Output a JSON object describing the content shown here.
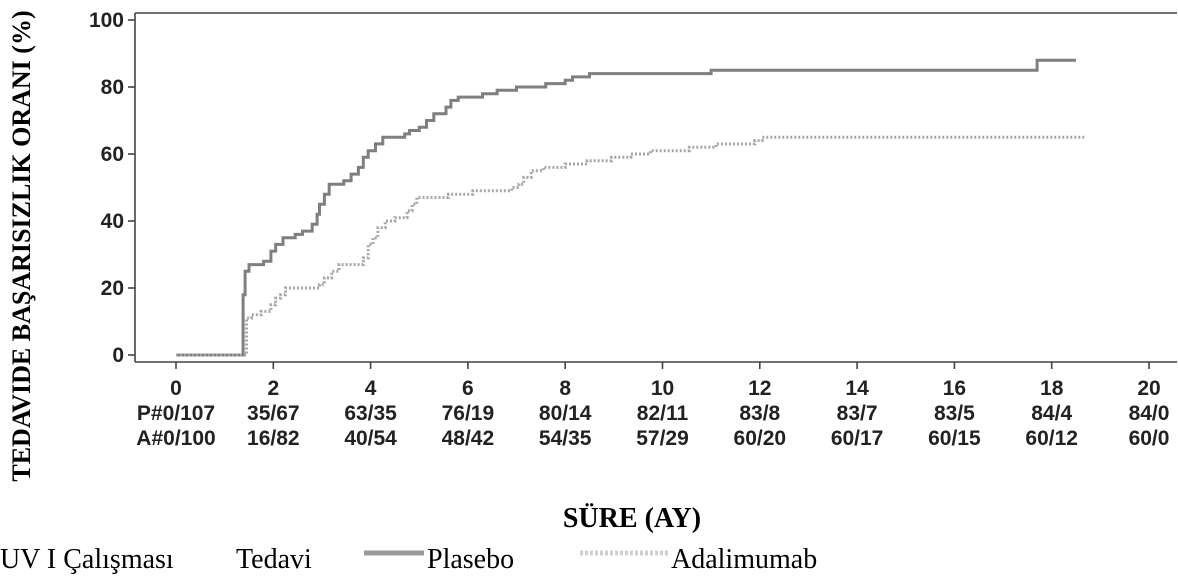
{
  "chart_data": {
    "type": "line",
    "ylabel": "TEDAVIDE BAŞARISIZLIK ORANI (%)",
    "xlabel": "SÜRE (AY)",
    "xlim": [
      0,
      20
    ],
    "ylim": [
      0,
      100
    ],
    "grid": false,
    "x_ticks": [
      0,
      2,
      4,
      6,
      8,
      10,
      12,
      14,
      16,
      18,
      20
    ],
    "y_ticks": [
      0,
      20,
      40,
      60,
      80,
      100
    ],
    "series": [
      {
        "name": "Plasebo",
        "color": "#7f7f7f",
        "style": "solid",
        "steps": [
          [
            0,
            0
          ],
          [
            1.38,
            18
          ],
          [
            1.42,
            25
          ],
          [
            1.5,
            27
          ],
          [
            1.8,
            28
          ],
          [
            1.95,
            31
          ],
          [
            2.05,
            33
          ],
          [
            2.2,
            35
          ],
          [
            2.45,
            36
          ],
          [
            2.6,
            37
          ],
          [
            2.8,
            39
          ],
          [
            2.9,
            42
          ],
          [
            2.95,
            45
          ],
          [
            3.05,
            48
          ],
          [
            3.15,
            51
          ],
          [
            3.45,
            52
          ],
          [
            3.6,
            54
          ],
          [
            3.75,
            56
          ],
          [
            3.85,
            59
          ],
          [
            3.95,
            61
          ],
          [
            4.1,
            63
          ],
          [
            4.25,
            65
          ],
          [
            4.7,
            66
          ],
          [
            4.8,
            67
          ],
          [
            5.0,
            68
          ],
          [
            5.15,
            70
          ],
          [
            5.3,
            72
          ],
          [
            5.55,
            74
          ],
          [
            5.65,
            76
          ],
          [
            5.8,
            77
          ],
          [
            6.3,
            78
          ],
          [
            6.6,
            79
          ],
          [
            7.0,
            80
          ],
          [
            7.6,
            81
          ],
          [
            8.0,
            82
          ],
          [
            8.15,
            83
          ],
          [
            8.5,
            84
          ],
          [
            11.0,
            85
          ],
          [
            17.7,
            88
          ],
          [
            18.5,
            88
          ]
        ]
      },
      {
        "name": "Adalimumab",
        "color": "#a6a6a6",
        "style": "dotted",
        "steps": [
          [
            0,
            0
          ],
          [
            1.45,
            11
          ],
          [
            1.55,
            12
          ],
          [
            1.75,
            13
          ],
          [
            1.95,
            15
          ],
          [
            2.05,
            17
          ],
          [
            2.15,
            18
          ],
          [
            2.25,
            20
          ],
          [
            2.95,
            21
          ],
          [
            3.05,
            23
          ],
          [
            3.2,
            25
          ],
          [
            3.35,
            27
          ],
          [
            3.85,
            29
          ],
          [
            3.95,
            33
          ],
          [
            4.05,
            35
          ],
          [
            4.15,
            38
          ],
          [
            4.3,
            40
          ],
          [
            4.5,
            41
          ],
          [
            4.75,
            43
          ],
          [
            4.85,
            45
          ],
          [
            4.95,
            47
          ],
          [
            5.6,
            48
          ],
          [
            6.1,
            49
          ],
          [
            6.9,
            50
          ],
          [
            7.05,
            51
          ],
          [
            7.15,
            53
          ],
          [
            7.3,
            55
          ],
          [
            7.55,
            56
          ],
          [
            8.0,
            57
          ],
          [
            8.45,
            58
          ],
          [
            8.95,
            59
          ],
          [
            9.35,
            60
          ],
          [
            9.75,
            61
          ],
          [
            10.55,
            62
          ],
          [
            11.1,
            63
          ],
          [
            11.9,
            64
          ],
          [
            12.05,
            65
          ],
          [
            18.7,
            65
          ]
        ]
      }
    ],
    "risk_table": {
      "rows": [
        {
          "label": "P#",
          "values": [
            "0/107",
            "35/67",
            "63/35",
            "76/19",
            "80/14",
            "82/11",
            "83/8",
            "83/7",
            "83/5",
            "84/4",
            "84/0"
          ]
        },
        {
          "label": "A#",
          "values": [
            "0/100",
            "16/82",
            "40/54",
            "48/42",
            "54/35",
            "57/29",
            "60/20",
            "60/17",
            "60/15",
            "60/12",
            "60/0"
          ]
        }
      ]
    },
    "legend": {
      "placement": "bottom",
      "caption": "UV I Çalışması",
      "title": "Tedavi"
    }
  }
}
